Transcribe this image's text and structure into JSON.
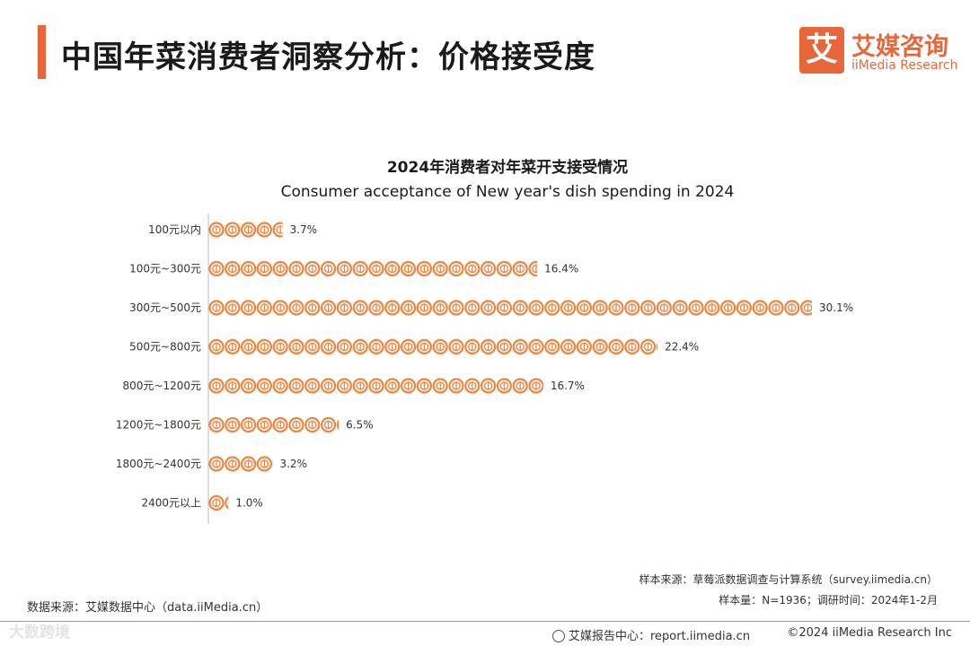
{
  "header": {
    "title": "中国年菜消费者洞察分析：价格接受度",
    "logo_mark": "艾",
    "logo_cn": "艾媒咨询",
    "logo_en": "iiMedia Research"
  },
  "colors": {
    "accent": "#e8673a",
    "icon": "#f0843f"
  },
  "chart_data": {
    "type": "bar",
    "orientation": "horizontal",
    "title": "2024年消费者对年菜开支接受情况",
    "subtitle": "Consumer acceptance of New year's dish spending in 2024",
    "categories": [
      "100元以内",
      "100元~300元",
      "300元~500元",
      "500元~800元",
      "800元~1200元",
      "1200元~1800元",
      "1800元~2400元",
      "2400元以上"
    ],
    "values": [
      3.7,
      16.4,
      30.1,
      22.4,
      16.7,
      6.5,
      3.2,
      1.0
    ],
    "value_labels": [
      "3.7%",
      "16.4%",
      "30.1%",
      "22.4%",
      "16.7%",
      "6.5%",
      "3.2%",
      "1.0%"
    ],
    "unit": "%",
    "xlim": [
      0,
      31
    ],
    "marker": "coin-icon"
  },
  "footer": {
    "data_source": "数据来源：艾媒数据中心（data.iiMedia.cn）",
    "sample_source": "样本来源：草莓派数据调查与计算系统（survey.iimedia.cn）",
    "sample_info": "样本量：N=1936；调研时间：2024年1-2月",
    "report_center": "艾媒报告中心：report.iimedia.cn",
    "copyright": "©2024  iiMedia Research  Inc",
    "watermark": "大数跨境"
  }
}
